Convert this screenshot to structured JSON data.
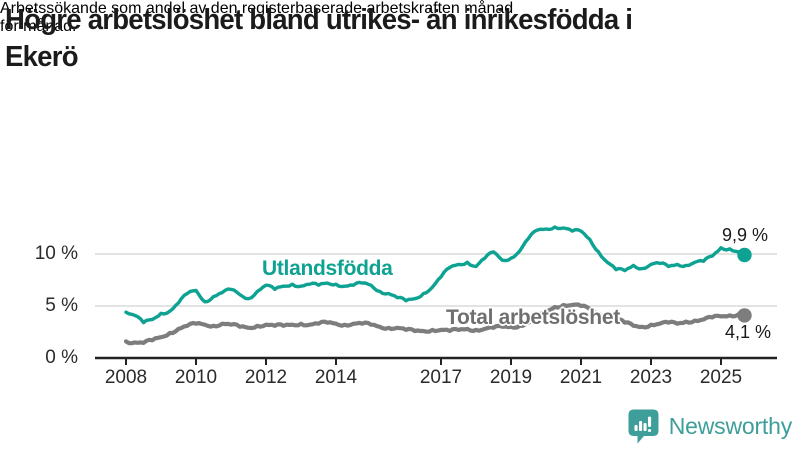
{
  "header": {
    "title_lines": [
      "Högre arbetslöshet bland utrikes- än inrikesfödda i",
      "Ekerö"
    ],
    "subtitle_lines": [
      "Arbetssökande som andel av den registerbaserade arbetskraften månad",
      "för månad."
    ]
  },
  "chart_data": {
    "type": "line",
    "unit": "%",
    "grid": "horizontal",
    "x_axis": {
      "tick_years": [
        2008,
        2010,
        2012,
        2014,
        2017,
        2019,
        2021,
        2023,
        2025
      ]
    },
    "y_axis": {
      "ticks": [
        {
          "value": 0,
          "label": "0 %"
        },
        {
          "value": 5,
          "label": "5 %"
        },
        {
          "value": 10,
          "label": "10 %"
        }
      ],
      "range": [
        0,
        13.5
      ]
    },
    "series": [
      {
        "name": "Utlandsfödda",
        "color": "#0da291",
        "stroke_width": 3.4,
        "end_label": "9,9 %",
        "x_start": 2008.0,
        "x_step": 0.25,
        "x_end": 2025.67,
        "values": [
          4.4,
          4.1,
          3.4,
          3.7,
          4.3,
          4.5,
          5.3,
          6.2,
          6.5,
          5.4,
          5.9,
          6.3,
          6.6,
          6.1,
          5.7,
          6.4,
          7.0,
          6.6,
          6.9,
          7.1,
          6.9,
          7.1,
          7.0,
          7.2,
          7.1,
          6.9,
          7.0,
          7.2,
          7.0,
          6.4,
          6.2,
          5.8,
          5.5,
          5.7,
          6.2,
          6.8,
          7.8,
          8.7,
          9.0,
          9.2,
          8.8,
          9.6,
          10.2,
          9.4,
          9.6,
          10.3,
          11.5,
          12.3,
          12.4,
          12.6,
          12.5,
          12.2,
          12.2,
          11.4,
          10.2,
          9.2,
          8.5,
          8.4,
          8.9,
          8.6,
          9.0,
          9.1,
          8.8,
          9.0,
          8.9,
          9.2,
          9.3,
          9.8,
          10.6,
          10.5,
          10.2,
          9.9
        ]
      },
      {
        "name": "Total arbetslöshet",
        "color": "#7d7d7d",
        "stroke_width": 4.2,
        "end_label": "4,1 %",
        "x_start": 2008.0,
        "x_step": 0.25,
        "x_end": 2025.67,
        "values": [
          1.6,
          1.5,
          1.45,
          1.7,
          2.0,
          2.4,
          2.8,
          3.1,
          3.3,
          3.2,
          3.1,
          3.3,
          3.2,
          3.0,
          2.9,
          3.1,
          3.2,
          3.1,
          3.1,
          3.2,
          3.3,
          3.2,
          3.3,
          3.4,
          3.3,
          3.2,
          3.3,
          3.3,
          3.2,
          3.0,
          2.9,
          2.9,
          2.7,
          2.6,
          2.6,
          2.7,
          2.7,
          2.6,
          2.7,
          2.8,
          2.7,
          2.8,
          2.9,
          3.0,
          3.0,
          3.1,
          3.4,
          3.9,
          4.4,
          4.9,
          5.1,
          5.1,
          5.0,
          4.7,
          4.3,
          4.0,
          3.8,
          3.4,
          3.1,
          3.0,
          3.2,
          3.3,
          3.4,
          3.3,
          3.5,
          3.6,
          3.7,
          3.9,
          4.0,
          4.1,
          4.2,
          4.1
        ]
      }
    ]
  },
  "branding": {
    "logo_text": "Newsworthy",
    "logo_color": "#3d9e9a",
    "logo_icon": "bar-chart-speech-bubble-icon"
  }
}
